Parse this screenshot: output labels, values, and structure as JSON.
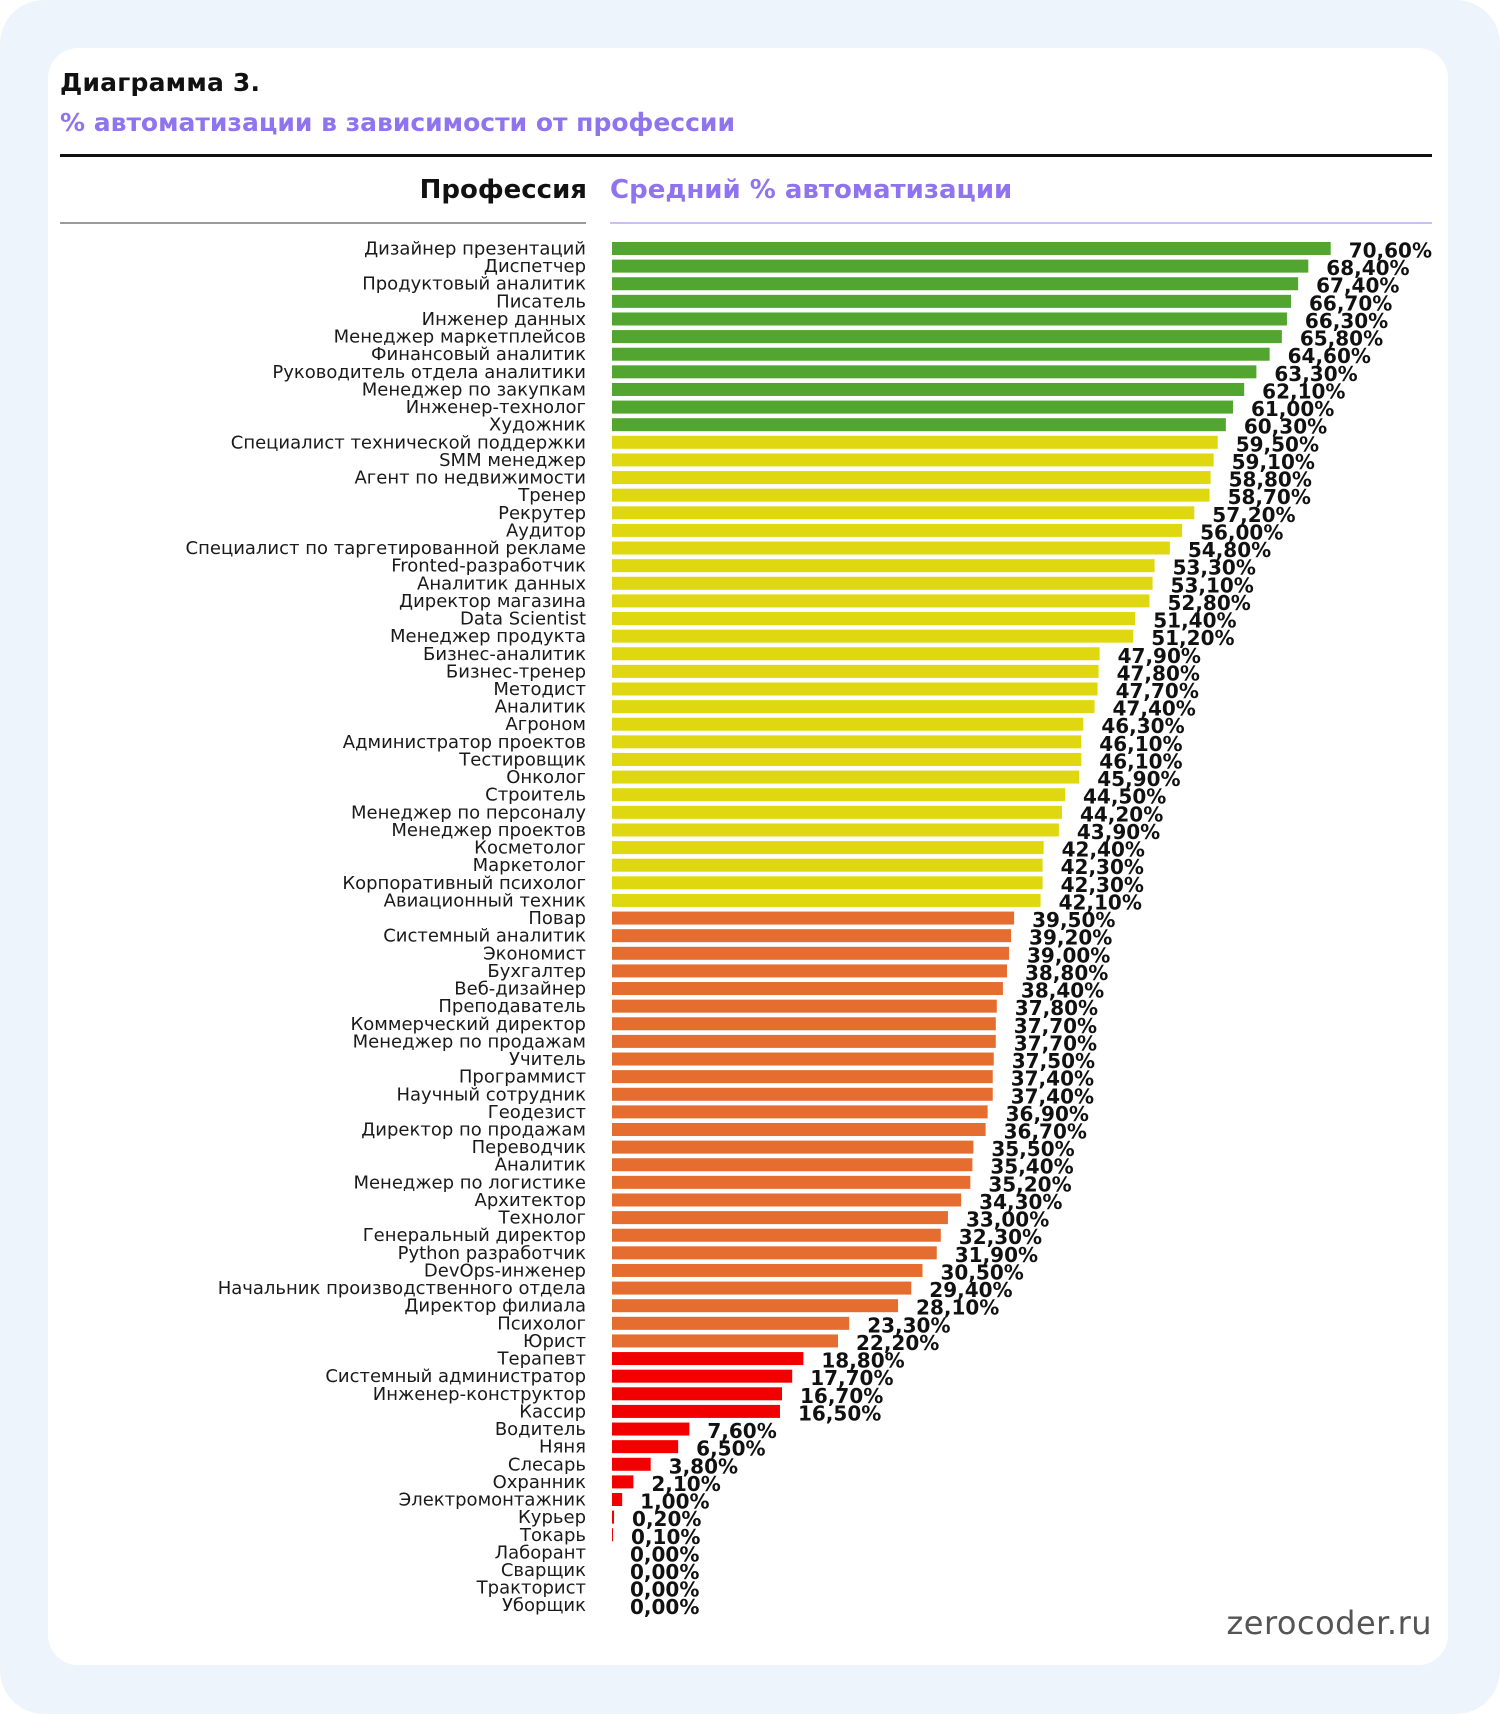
{
  "header": {
    "title": "Диаграмма 3.",
    "subtitle": "% автоматизации в зависимости от профессии",
    "col_profession": "Профессия",
    "col_value": "Средний % автоматизации"
  },
  "watermark": "zerocoder.ru",
  "colors": {
    "green": "#52a52e",
    "yellow": "#dfd810",
    "orange": "#e46d2f",
    "red": "#f20000",
    "accent_purple": "#8f73ef"
  },
  "chart_data": {
    "type": "bar",
    "orientation": "horizontal",
    "title": "% автоматизации в зависимости от профессии",
    "xlabel": "Средний % автоматизации",
    "ylabel": "Профессия",
    "xlim": [
      0,
      100
    ],
    "grid": false,
    "value_format": "comma-decimal percent",
    "color_groups": [
      {
        "name": "green",
        "range": "≥ 60%"
      },
      {
        "name": "yellow",
        "range": "42–60%"
      },
      {
        "name": "orange",
        "range": "20–40%"
      },
      {
        "name": "red",
        "range": "< 20%"
      }
    ],
    "categories": [
      "Дизайнер презентаций",
      "Диспетчер",
      "Продуктовый аналитик",
      "Писатель",
      "Инженер данных",
      "Менеджер маркетплейсов",
      "Финансовый аналитик",
      "Руководитель отдела аналитики",
      "Менеджер по закупкам",
      "Инженер-технолог",
      "Художник",
      "Специалист технической поддержки",
      "SMM менеджер",
      "Агент по недвижимости",
      "Тренер",
      "Рекрутер",
      "Аудитор",
      "Специалист по таргетированной рекламе",
      "Fronted-разработчик",
      "Аналитик данных",
      "Директор магазина",
      "Data Scientist",
      "Менеджер продукта",
      "Бизнес-аналитик",
      "Бизнес-тренер",
      "Методист",
      "Аналитик",
      "Агроном",
      "Администратор проектов",
      "Тестировщик",
      "Онколог",
      "Строитель",
      "Менеджер по персоналу",
      "Менеджер проектов",
      "Косметолог",
      "Маркетолог",
      "Корпоративный психолог",
      "Авиационный техник",
      "Повар",
      "Системный аналитик",
      "Экономист",
      "Бухгалтер",
      "Веб-дизайнер",
      "Преподаватель",
      "Коммерческий директор",
      "Менеджер по продажам",
      "Учитель",
      "Программист",
      "Научный сотрудник",
      "Геодезист",
      "Директор по продажам",
      "Переводчик",
      "Аналитик",
      "Менеджер по логистике",
      "Архитектор",
      "Технолог",
      "Генеральный директор",
      "Python разработчик",
      "DevOps-инженер",
      "Начальник производственного отдела",
      "Директор филиала",
      "Психолог",
      "Юрист",
      "Терапевт",
      "Системный администратор",
      "Инженер-конструктор",
      "Кассир",
      "Водитель",
      "Няня",
      "Слесарь",
      "Охранник",
      "Электромонтажник",
      "Курьер",
      "Токарь",
      "Лаборант",
      "Сварщик",
      "Тракторист",
      "Уборщик"
    ],
    "values": [
      70.6,
      68.4,
      67.4,
      66.7,
      66.3,
      65.8,
      64.6,
      63.3,
      62.1,
      61.0,
      60.3,
      59.5,
      59.1,
      58.8,
      58.7,
      57.2,
      56.0,
      54.8,
      53.3,
      53.1,
      52.8,
      51.4,
      51.2,
      47.9,
      47.8,
      47.7,
      47.4,
      46.3,
      46.1,
      46.1,
      45.9,
      44.5,
      44.2,
      43.9,
      42.4,
      42.3,
      42.3,
      42.1,
      39.5,
      39.2,
      39.0,
      38.8,
      38.4,
      37.8,
      37.7,
      37.7,
      37.5,
      37.4,
      37.4,
      36.9,
      36.7,
      35.5,
      35.4,
      35.2,
      34.3,
      33.0,
      32.3,
      31.9,
      30.5,
      29.4,
      28.1,
      23.3,
      22.2,
      18.8,
      17.7,
      16.7,
      16.5,
      7.6,
      6.5,
      3.8,
      2.1,
      1.0,
      0.2,
      0.1,
      0.0,
      0.0,
      0.0,
      0.0
    ],
    "value_labels": [
      "70,60%",
      "68,40%",
      "67,40%",
      "66,70%",
      "66,30%",
      "65,80%",
      "64,60%",
      "63,30%",
      "62,10%",
      "61,00%",
      "60,30%",
      "59,50%",
      "59,10%",
      "58,80%",
      "58,70%",
      "57,20%",
      "56,00%",
      "54,80%",
      "53,30%",
      "53,10%",
      "52,80%",
      "51,40%",
      "51,20%",
      "47,90%",
      "47,80%",
      "47,70%",
      "47,40%",
      "46,30%",
      "46,10%",
      "46,10%",
      "45,90%",
      "44,50%",
      "44,20%",
      "43,90%",
      "42,40%",
      "42,30%",
      "42,30%",
      "42,10%",
      "39,50%",
      "39,20%",
      "39,00%",
      "38,80%",
      "38,40%",
      "37,80%",
      "37,70%",
      "37,70%",
      "37,50%",
      "37,40%",
      "37,40%",
      "36,90%",
      "36,70%",
      "35,50%",
      "35,40%",
      "35,20%",
      "34,30%",
      "33,00%",
      "32,30%",
      "31,90%",
      "30,50%",
      "29,40%",
      "28,10%",
      "23,30%",
      "22,20%",
      "18,80%",
      "17,70%",
      "16,70%",
      "16,50%",
      "7,60%",
      "6,50%",
      "3,80%",
      "2,10%",
      "1,00%",
      "0,20%",
      "0,10%",
      "0,00%",
      "0,00%",
      "0,00%",
      "0,00%"
    ],
    "bar_colors": [
      "green",
      "green",
      "green",
      "green",
      "green",
      "green",
      "green",
      "green",
      "green",
      "green",
      "green",
      "yellow",
      "yellow",
      "yellow",
      "yellow",
      "yellow",
      "yellow",
      "yellow",
      "yellow",
      "yellow",
      "yellow",
      "yellow",
      "yellow",
      "yellow",
      "yellow",
      "yellow",
      "yellow",
      "yellow",
      "yellow",
      "yellow",
      "yellow",
      "yellow",
      "yellow",
      "yellow",
      "yellow",
      "yellow",
      "yellow",
      "yellow",
      "orange",
      "orange",
      "orange",
      "orange",
      "orange",
      "orange",
      "orange",
      "orange",
      "orange",
      "orange",
      "orange",
      "orange",
      "orange",
      "orange",
      "orange",
      "orange",
      "orange",
      "orange",
      "orange",
      "orange",
      "orange",
      "orange",
      "orange",
      "orange",
      "orange",
      "red",
      "red",
      "red",
      "red",
      "red",
      "red",
      "red",
      "red",
      "red",
      "red",
      "red",
      "red",
      "red",
      "red",
      "red"
    ]
  }
}
